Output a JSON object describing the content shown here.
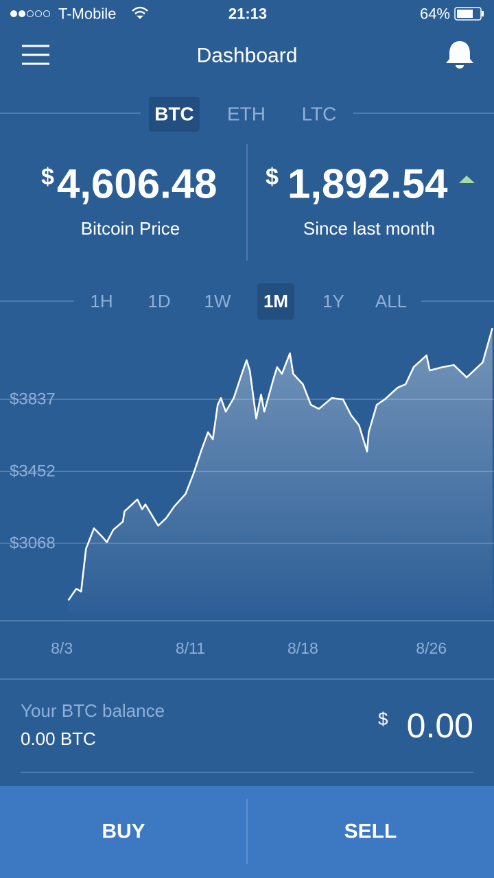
{
  "status_bar": {
    "carrier": "T-Mobile",
    "time": "21:13",
    "battery": "64%"
  },
  "header": {
    "title": "Dashboard"
  },
  "currency_tabs": [
    "BTC",
    "ETH",
    "LTC"
  ],
  "price": {
    "symbol": "$",
    "value": "4,606.48",
    "label": "Bitcoin Price"
  },
  "change": {
    "symbol": "$",
    "value": "1,892.54",
    "label": "Since last month"
  },
  "ranges": [
    "1H",
    "1D",
    "1W",
    "1M",
    "1Y",
    "ALL"
  ],
  "chart_data": {
    "type": "line",
    "color": "#ffffff",
    "x": [
      3.4,
      3.9,
      4.2,
      4.5,
      5.0,
      5.5,
      5.8,
      6.2,
      6.8,
      6.9,
      7.7,
      8.0,
      8.2,
      9.0,
      9.5,
      10.0,
      10.7,
      11.2,
      11.7,
      12.1,
      12.4,
      12.7,
      12.9,
      13.2,
      13.7,
      14.2,
      14.5,
      14.7,
      15.1,
      15.4,
      15.6,
      16.2,
      16.4,
      16.7,
      17.2,
      17.4,
      18.0,
      18.5,
      19.0,
      19.8,
      20.5,
      21.0,
      21.5,
      22.0,
      22.1,
      22.6,
      23.1,
      23.9,
      24.4,
      24.9,
      25.7,
      25.9,
      26.7,
      27.4,
      28.2,
      29.2,
      29.8
    ],
    "values": [
      2763,
      2825,
      2810,
      3038,
      3148,
      3104,
      3074,
      3140,
      3184,
      3239,
      3302,
      3250,
      3276,
      3162,
      3203,
      3265,
      3331,
      3441,
      3569,
      3661,
      3624,
      3808,
      3844,
      3771,
      3844,
      3973,
      4046,
      3991,
      3734,
      3863,
      3771,
      3954,
      4009,
      3973,
      4083,
      3973,
      3918,
      3808,
      3786,
      3844,
      3837,
      3753,
      3698,
      3558,
      3661,
      3808,
      3837,
      3899,
      3918,
      4009,
      4072,
      3991,
      4009,
      4020,
      3954,
      4035,
      4218
    ],
    "xlim": [
      -0.85,
      29.9
    ],
    "xticks": [
      {
        "value": 3,
        "label": "8/3"
      },
      {
        "value": 11,
        "label": "8/11"
      },
      {
        "value": 18,
        "label": "8/18"
      },
      {
        "value": 26,
        "label": "8/26"
      }
    ],
    "ylim": [
      2654,
      4248
    ],
    "yticks": [
      {
        "value": 3068,
        "label": "$3068"
      },
      {
        "value": 3452,
        "label": "$3452"
      },
      {
        "value": 3837,
        "label": "$3837"
      }
    ],
    "grid": true
  },
  "balance": {
    "label": "Your BTC balance",
    "amount": "0.00 BTC",
    "symbol": "$",
    "value": "0.00"
  },
  "actions": {
    "buy": "BUY",
    "sell": "SELL"
  }
}
